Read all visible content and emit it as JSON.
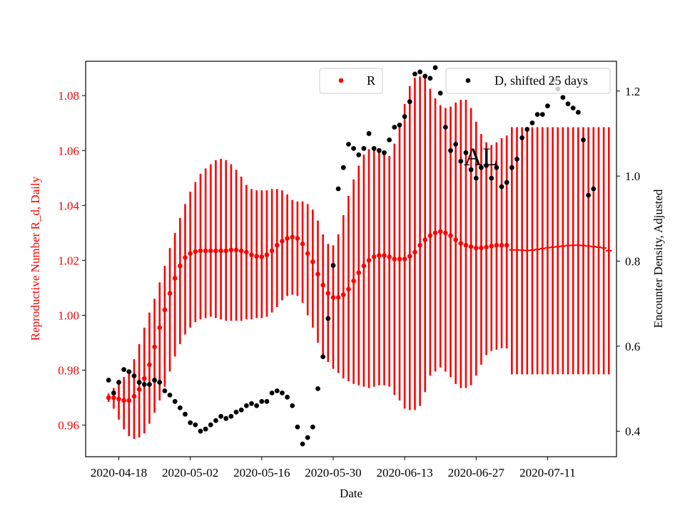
{
  "chart_data": {
    "type": "scatter",
    "title": "",
    "annotation": "AL",
    "xlabel": "Date",
    "ylabel_left": "Reproductive Number R_d, Daily",
    "ylabel_right": "Encounter Density, Adjusted",
    "x_ticks": [
      "2020-04-18",
      "2020-05-02",
      "2020-05-16",
      "2020-05-30",
      "2020-06-13",
      "2020-06-27",
      "2020-07-11"
    ],
    "x_tick_days": [
      0,
      14,
      28,
      42,
      56,
      70,
      84
    ],
    "x_range_days": [
      -6.5,
      97.5
    ],
    "y_left_ticks": [
      "0.96",
      "0.98",
      "1.00",
      "1.02",
      "1.04",
      "1.06",
      "1.08"
    ],
    "y_left_range": [
      0.9485,
      1.0925
    ],
    "y_right_ticks": [
      "0.4",
      "0.6",
      "0.8",
      "1.0",
      "1.2"
    ],
    "y_right_range": [
      0.34,
      1.27
    ],
    "legend": [
      {
        "label": "R",
        "color": "#ff0000",
        "position": "top-center"
      },
      {
        "label": "D, shifted 25 days",
        "color": "#000000",
        "position": "top-right"
      }
    ],
    "colors": {
      "R": "#ff0000",
      "D": "#000000",
      "left_axis": "#ff0000",
      "right_axis": "#000000"
    },
    "R_start_day": -2,
    "R_values": [
      0.97,
      0.97,
      0.9695,
      0.969,
      0.969,
      0.9705,
      0.973,
      0.977,
      0.982,
      0.9885,
      0.9955,
      1.002,
      1.008,
      1.0135,
      1.018,
      1.021,
      1.0225,
      1.0232,
      1.0235,
      1.0235,
      1.0235,
      1.0235,
      1.0235,
      1.0235,
      1.0238,
      1.0238,
      1.0235,
      1.023,
      1.022,
      1.0215,
      1.0213,
      1.022,
      1.0235,
      1.0255,
      1.027,
      1.028,
      1.0285,
      1.028,
      1.026,
      1.0225,
      1.0195,
      1.015,
      1.011,
      1.008,
      1.0065,
      1.0065,
      1.0075,
      1.0095,
      1.0125,
      1.0155,
      1.018,
      1.02,
      1.0213,
      1.0218,
      1.0218,
      1.0213,
      1.0205,
      1.0205,
      1.0205,
      1.0215,
      1.023,
      1.0255,
      1.0275,
      1.029,
      1.03,
      1.0305,
      1.03,
      1.029,
      1.0275,
      1.0262,
      1.0255,
      1.025,
      1.0245,
      1.0245,
      1.0248,
      1.0252,
      1.0255,
      1.0255,
      1.0255
    ],
    "R_err_low": [
      0.9685,
      0.966,
      0.962,
      0.9585,
      0.956,
      0.955,
      0.9555,
      0.957,
      0.9605,
      0.9645,
      0.969,
      0.974,
      0.9795,
      0.985,
      0.9895,
      0.993,
      0.9955,
      0.9975,
      0.9985,
      0.999,
      0.9995,
      0.999,
      0.9985,
      0.998,
      0.998,
      0.998,
      0.998,
      0.9985,
      0.9985,
      0.999,
      0.999,
      0.9995,
      1.001,
      1.003,
      1.0055,
      1.007,
      1.0075,
      1.007,
      1.0045,
      1.0,
      0.9955,
      0.99,
      0.9855,
      0.983,
      0.9805,
      0.979,
      0.977,
      0.976,
      0.975,
      0.9745,
      0.974,
      0.9735,
      0.974,
      0.9745,
      0.9745,
      0.974,
      0.971,
      0.969,
      0.966,
      0.9655,
      0.9655,
      0.967,
      0.972,
      0.978,
      0.9795,
      0.981,
      0.9795,
      0.9775,
      0.975,
      0.9735,
      0.9735,
      0.9745,
      0.978,
      0.982,
      0.9855,
      0.987,
      0.9875,
      0.988,
      0.988
    ],
    "R_err_high": [
      0.9715,
      0.9735,
      0.975,
      0.9775,
      0.9795,
      0.984,
      0.9895,
      0.9955,
      1.001,
      1.006,
      1.012,
      1.018,
      1.0245,
      1.03,
      1.0355,
      1.0405,
      1.045,
      1.0485,
      1.0515,
      1.0535,
      1.055,
      1.0565,
      1.057,
      1.0565,
      1.055,
      1.053,
      1.0505,
      1.0475,
      1.046,
      1.0455,
      1.0455,
      1.0455,
      1.046,
      1.046,
      1.0455,
      1.044,
      1.042,
      1.0415,
      1.0415,
      1.0405,
      1.0385,
      1.0345,
      1.0295,
      1.026,
      1.0255,
      1.0295,
      1.0365,
      1.0435,
      1.0495,
      1.0545,
      1.0585,
      1.0605,
      1.061,
      1.0605,
      1.059,
      1.058,
      1.0625,
      1.07,
      1.077,
      1.0835,
      1.0865,
      1.087,
      1.0865,
      1.0825,
      1.079,
      1.0765,
      1.0755,
      1.076,
      1.0775,
      1.0785,
      1.0785,
      1.0755,
      1.0705,
      1.066,
      1.063,
      1.062,
      1.063,
      1.0645,
      1.0655
    ],
    "R_tail": {
      "start_day": 77,
      "end_day": 96,
      "values": [
        1.0238,
        1.0238,
        1.0237,
        1.0236,
        1.0237,
        1.024,
        1.0243,
        1.0246,
        1.0248,
        1.025,
        1.0252,
        1.0254,
        1.0255,
        1.0255,
        1.0254,
        1.0252,
        1.025,
        1.0248,
        1.0245,
        1.0235
      ],
      "err_low": 0.9785,
      "err_high": 1.0685
    },
    "D_points": [
      [
        -2,
        0.52
      ],
      [
        -1,
        0.49
      ],
      [
        0,
        0.515
      ],
      [
        1,
        0.545
      ],
      [
        2,
        0.54
      ],
      [
        3,
        0.53
      ],
      [
        4,
        0.515
      ],
      [
        5,
        0.51
      ],
      [
        6,
        0.51
      ],
      [
        7,
        0.52
      ],
      [
        8,
        0.515
      ],
      [
        9,
        0.495
      ],
      [
        10,
        0.485
      ],
      [
        11,
        0.47
      ],
      [
        12,
        0.455
      ],
      [
        13,
        0.44
      ],
      [
        14,
        0.42
      ],
      [
        15,
        0.415
      ],
      [
        16,
        0.4
      ],
      [
        17,
        0.405
      ],
      [
        18,
        0.415
      ],
      [
        19,
        0.425
      ],
      [
        20,
        0.435
      ],
      [
        21,
        0.43
      ],
      [
        22,
        0.435
      ],
      [
        23,
        0.445
      ],
      [
        24,
        0.45
      ],
      [
        25,
        0.46
      ],
      [
        26,
        0.465
      ],
      [
        27,
        0.46
      ],
      [
        28,
        0.47
      ],
      [
        29,
        0.47
      ],
      [
        30,
        0.49
      ],
      [
        31,
        0.495
      ],
      [
        32,
        0.49
      ],
      [
        33,
        0.48
      ],
      [
        34,
        0.46
      ],
      [
        35,
        0.41
      ],
      [
        36,
        0.37
      ],
      [
        37,
        0.385
      ],
      [
        38,
        0.41
      ],
      [
        39,
        0.5
      ],
      [
        40,
        0.575
      ],
      [
        41,
        0.665
      ],
      [
        42,
        0.79
      ],
      [
        43,
        0.97
      ],
      [
        44,
        1.02
      ],
      [
        45,
        1.075
      ],
      [
        46,
        1.065
      ],
      [
        47,
        1.05
      ],
      [
        48,
        1.065
      ],
      [
        49,
        1.1
      ],
      [
        50,
        1.065
      ],
      [
        51,
        1.06
      ],
      [
        52,
        1.055
      ],
      [
        53,
        1.085
      ],
      [
        54,
        1.115
      ],
      [
        55,
        1.12
      ],
      [
        56,
        1.14
      ],
      [
        57,
        1.175
      ],
      [
        58,
        1.24
      ],
      [
        59,
        1.245
      ],
      [
        60,
        1.235
      ],
      [
        61,
        1.23
      ],
      [
        62,
        1.255
      ],
      [
        63,
        1.195
      ],
      [
        64,
        1.115
      ],
      [
        65,
        1.06
      ],
      [
        66,
        1.075
      ],
      [
        67,
        1.035
      ],
      [
        68,
        1.055
      ],
      [
        69,
        1.015
      ],
      [
        70,
        0.995
      ],
      [
        71,
        1.02
      ],
      [
        72,
        1.025
      ],
      [
        73,
        0.995
      ],
      [
        74,
        1.02
      ],
      [
        75,
        0.975
      ],
      [
        76,
        0.985
      ],
      [
        77,
        1.02
      ],
      [
        78,
        1.04
      ],
      [
        79,
        1.09
      ],
      [
        80,
        1.11
      ],
      [
        81,
        1.125
      ],
      [
        82,
        1.145
      ],
      [
        83,
        1.145
      ],
      [
        84,
        1.165
      ],
      [
        85,
        1.225
      ],
      [
        86,
        1.205
      ],
      [
        87,
        1.185
      ],
      [
        88,
        1.17
      ],
      [
        89,
        1.16
      ],
      [
        90,
        1.15
      ],
      [
        91,
        1.085
      ],
      [
        92,
        0.955
      ],
      [
        93,
        0.97
      ]
    ]
  }
}
